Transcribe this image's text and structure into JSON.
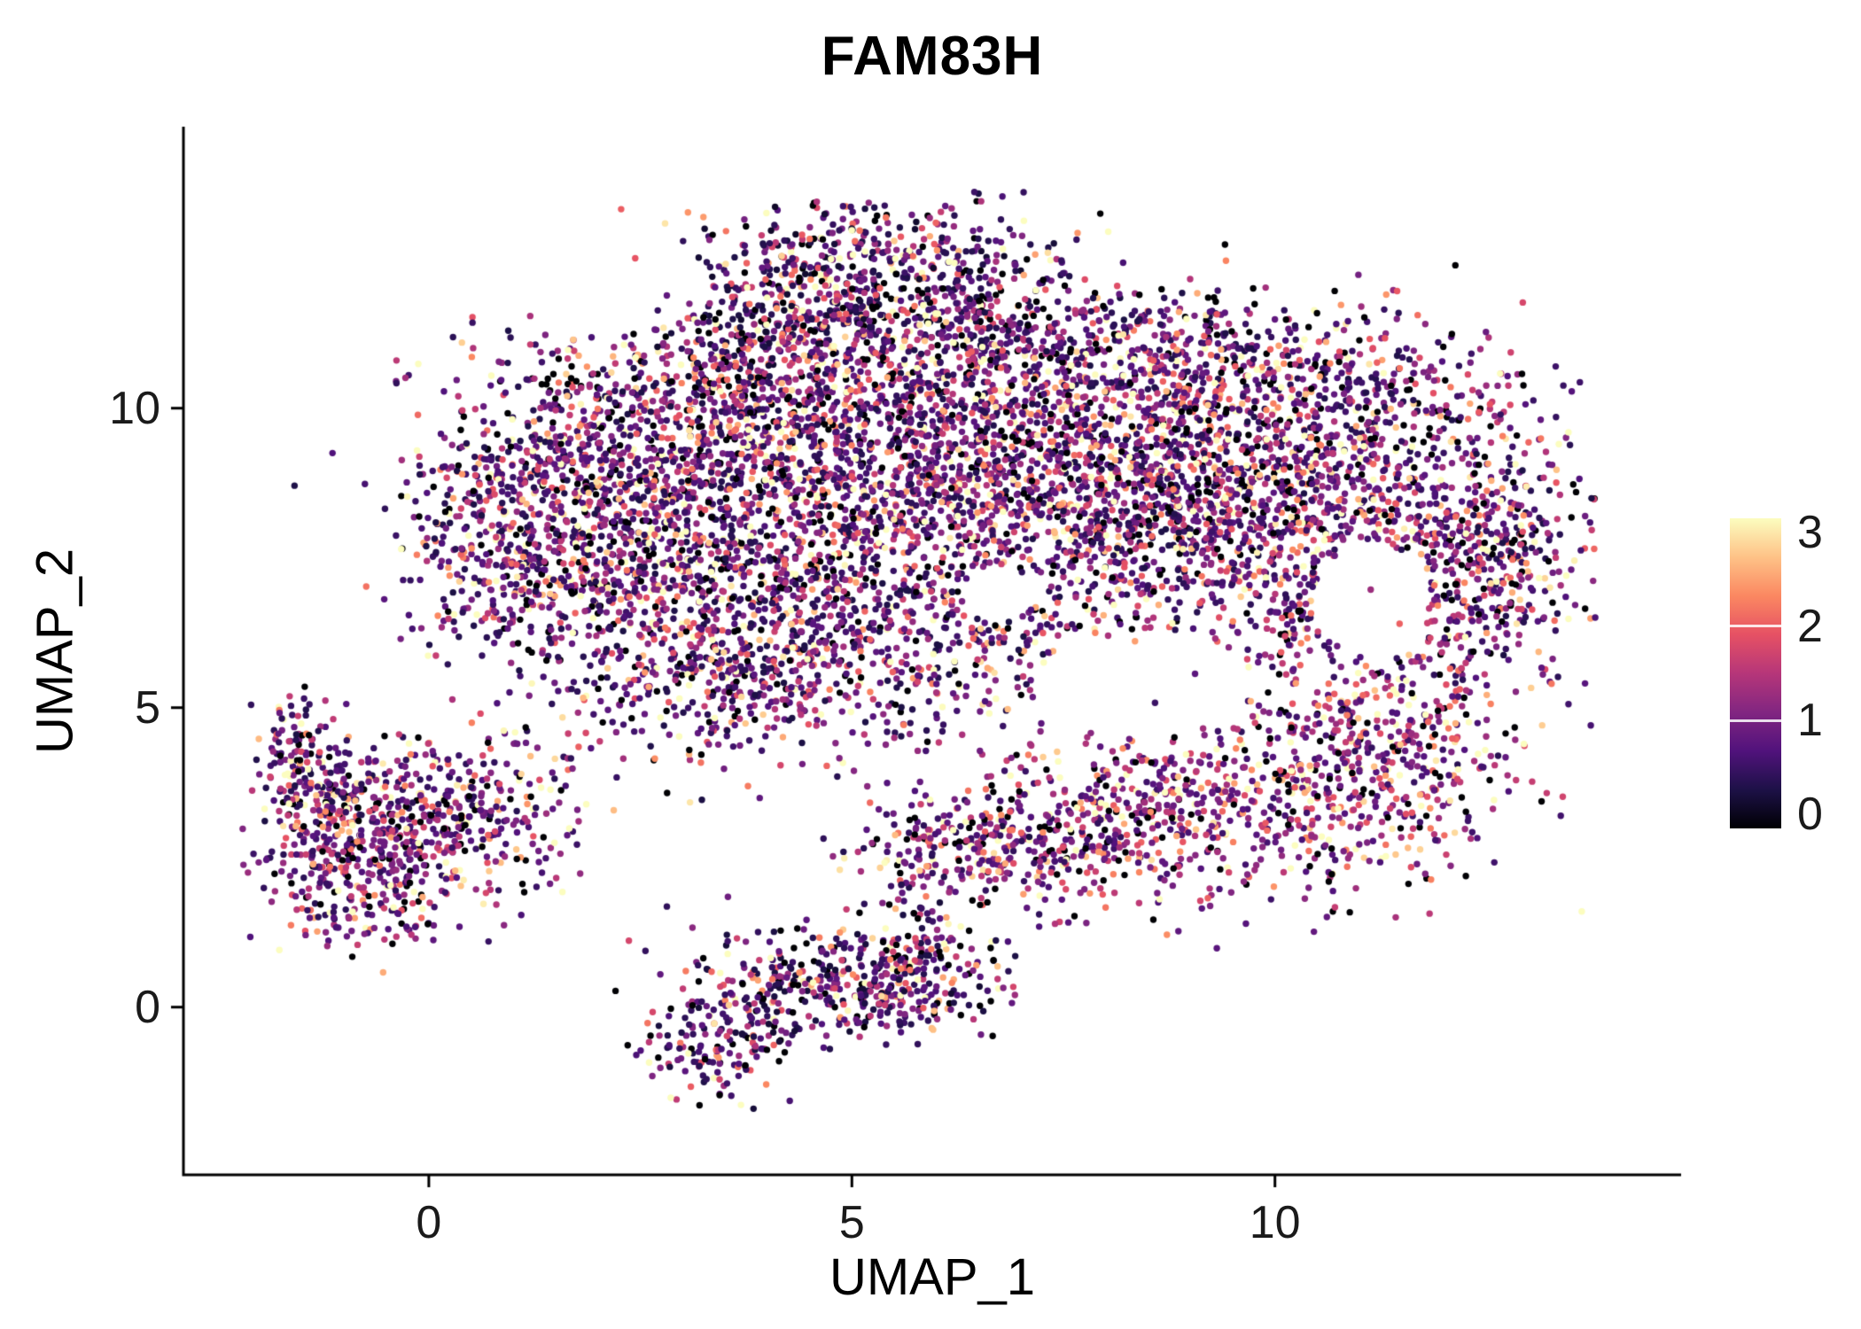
{
  "chart_data": {
    "type": "scatter",
    "title": "FAM83H",
    "xlabel": "UMAP_1",
    "ylabel": "UMAP_2",
    "xlim": [
      -2.9,
      14.8
    ],
    "ylim": [
      -2.8,
      14.7
    ],
    "grid": false,
    "x_ticks": [
      {
        "value": 0,
        "label": "0"
      },
      {
        "value": 5,
        "label": "5"
      },
      {
        "value": 10,
        "label": "10"
      }
    ],
    "y_ticks": [
      {
        "value": 0,
        "label": "0"
      },
      {
        "value": 5,
        "label": "5"
      },
      {
        "value": 10,
        "label": "10"
      }
    ],
    "colorbar": {
      "colormap": "magma",
      "domain": [
        0,
        3
      ],
      "ticks": [
        {
          "value": 0,
          "label": "0"
        },
        {
          "value": 1,
          "label": "1"
        },
        {
          "value": 2,
          "label": "2"
        },
        {
          "value": 3,
          "label": "3"
        }
      ],
      "stops": [
        "#000004",
        "#1D1147",
        "#51127C",
        "#822681",
        "#B63679",
        "#E65164",
        "#FB8861",
        "#FEC287",
        "#FCFDBF"
      ]
    },
    "points": {
      "seed": 42,
      "radius": 3.7,
      "value_distribution": {
        "zero_fraction": 0.12,
        "exp_mean": 0.95,
        "offset": 0.35,
        "max": 3
      },
      "clusters": [
        {
          "x": 1.2,
          "y": 8.0,
          "sx": 0.85,
          "sy": 1.25,
          "n": 650,
          "bias": 0
        },
        {
          "x": 2.5,
          "y": 9.4,
          "sx": 0.95,
          "sy": 0.95,
          "n": 600,
          "bias": 0
        },
        {
          "x": 2.9,
          "y": 7.0,
          "sx": 1.0,
          "sy": 1.1,
          "n": 520,
          "bias": 0
        },
        {
          "x": 4.4,
          "y": 9.8,
          "sx": 1.15,
          "sy": 1.1,
          "n": 650,
          "bias": 0
        },
        {
          "x": 4.7,
          "y": 7.6,
          "sx": 1.25,
          "sy": 1.15,
          "n": 560,
          "bias": 0
        },
        {
          "x": 6.2,
          "y": 9.2,
          "sx": 1.2,
          "sy": 1.25,
          "n": 650,
          "bias": 0
        },
        {
          "x": 7.8,
          "y": 8.8,
          "sx": 1.2,
          "sy": 1.15,
          "n": 760,
          "bias": 0
        },
        {
          "x": 9.2,
          "y": 8.5,
          "sx": 1.15,
          "sy": 1.2,
          "n": 760,
          "bias": 0.05
        },
        {
          "x": 10.6,
          "y": 8.1,
          "sx": 1.0,
          "sy": 1.4,
          "n": 560,
          "bias": 0.1
        },
        {
          "x": 12.0,
          "y": 7.4,
          "sx": 0.85,
          "sy": 1.5,
          "n": 500,
          "bias": 0.1
        },
        {
          "x": 12.9,
          "y": 7.9,
          "sx": 0.45,
          "sy": 1.1,
          "n": 170,
          "bias": 0
        },
        {
          "x": 5.3,
          "y": 12.4,
          "sx": 1.15,
          "sy": 0.55,
          "n": 420,
          "bias": -0.15
        },
        {
          "x": 4.1,
          "y": 11.5,
          "sx": 0.95,
          "sy": 0.6,
          "n": 280,
          "bias": -0.15
        },
        {
          "x": 6.5,
          "y": 11.3,
          "sx": 1.15,
          "sy": 0.6,
          "n": 320,
          "bias": 0
        },
        {
          "x": 8.6,
          "y": 10.9,
          "sx": 1.4,
          "sy": 0.55,
          "n": 330,
          "bias": 0
        },
        {
          "x": 10.8,
          "y": 10.3,
          "sx": 0.95,
          "sy": 0.6,
          "n": 230,
          "bias": 0
        },
        {
          "x": 5.8,
          "y": 5.9,
          "sx": 1.5,
          "sy": 0.8,
          "n": 430,
          "bias": 0
        },
        {
          "x": 3.7,
          "y": 5.3,
          "sx": 0.8,
          "sy": 0.6,
          "n": 190,
          "bias": 0
        },
        {
          "x": 9.6,
          "y": 3.4,
          "sx": 1.5,
          "sy": 0.85,
          "n": 650,
          "bias": 0.25
        },
        {
          "x": 11.3,
          "y": 4.4,
          "sx": 0.8,
          "sy": 0.85,
          "n": 280,
          "bias": 0.25
        },
        {
          "x": 7.3,
          "y": 2.9,
          "sx": 0.9,
          "sy": 0.6,
          "n": 280,
          "bias": 0.15
        },
        {
          "x": 6.1,
          "y": 2.6,
          "sx": 0.55,
          "sy": 0.4,
          "n": 110,
          "bias": 0
        },
        {
          "x": 0.2,
          "y": 3.2,
          "sx": 0.85,
          "sy": 0.7,
          "n": 430,
          "bias": 0.1
        },
        {
          "x": -0.8,
          "y": 2.3,
          "sx": 0.6,
          "sy": 0.65,
          "n": 320,
          "bias": 0.1
        },
        {
          "x": -1.2,
          "y": 3.6,
          "sx": 0.4,
          "sy": 0.4,
          "n": 130,
          "bias": 0
        },
        {
          "x": -1.6,
          "y": 4.4,
          "sx": 0.2,
          "sy": 0.45,
          "n": 80,
          "bias": 0
        },
        {
          "x": 4.8,
          "y": 0.35,
          "sx": 0.9,
          "sy": 0.5,
          "n": 360,
          "bias": -0.1
        },
        {
          "x": 3.3,
          "y": -0.6,
          "sx": 0.45,
          "sy": 0.45,
          "n": 140,
          "bias": -0.1
        },
        {
          "x": 5.9,
          "y": 0.5,
          "sx": 0.5,
          "sy": 0.4,
          "n": 110,
          "bias": 0
        },
        {
          "x": 5.7,
          "y": 1.5,
          "sx": 0.4,
          "sy": 0.5,
          "n": 50,
          "bias": 0
        }
      ],
      "holes": [
        {
          "x": 8.4,
          "y": 5.35,
          "rx": 1.25,
          "ry": 0.85
        },
        {
          "x": 11.15,
          "y": 6.8,
          "rx": 0.7,
          "ry": 0.95
        },
        {
          "x": 6.7,
          "y": 6.9,
          "rx": 0.5,
          "ry": 0.45
        },
        {
          "x": 2.1,
          "y": 12.2,
          "rx": 1.1,
          "ry": 1.0
        }
      ]
    }
  }
}
